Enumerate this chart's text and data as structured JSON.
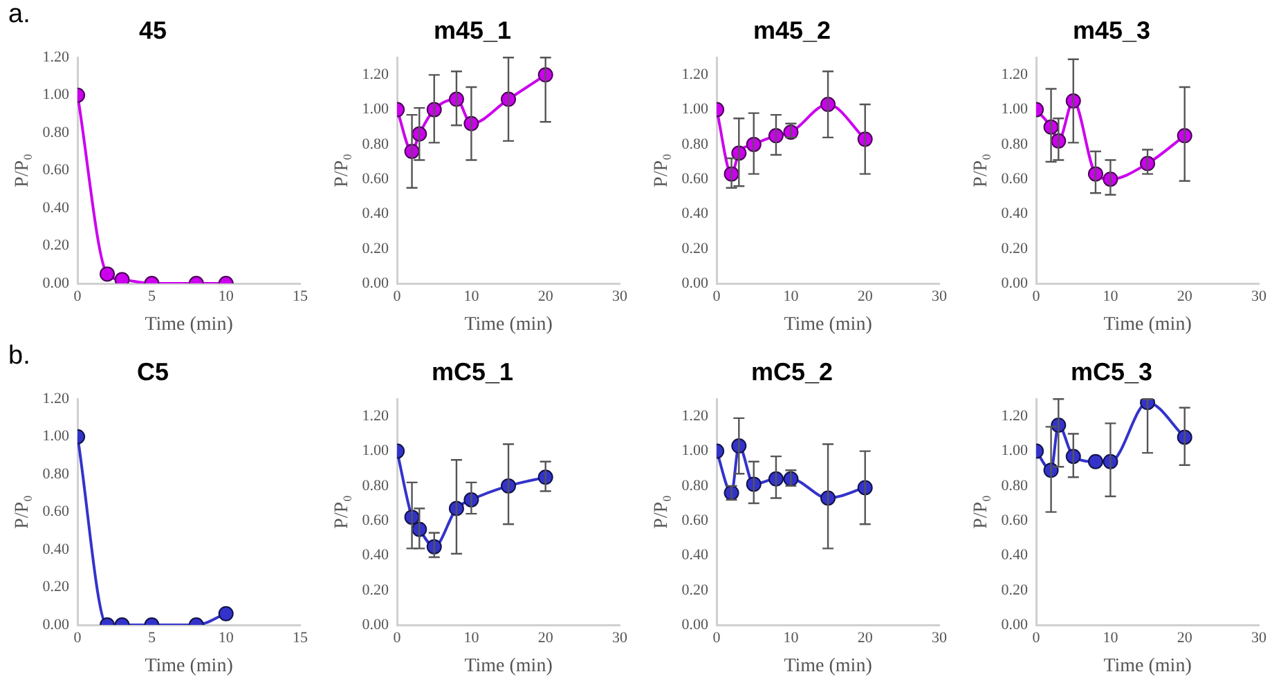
{
  "chart_data": [
    {
      "type": "line",
      "title": "45",
      "xlabel": "Time (min)",
      "ylabel": "P/P₀",
      "annotations": [
        "a."
      ],
      "x": [
        0,
        2,
        3,
        5,
        8,
        10
      ],
      "xlim": [
        0,
        15
      ],
      "xticks": [
        0,
        5,
        10,
        15
      ],
      "ylim": [
        0,
        1.2
      ],
      "yticks": [
        {
          "value": 0,
          "label": "0.00"
        },
        {
          "value": 0.2,
          "label": "0.20"
        },
        {
          "value": 0.4,
          "label": "0.40"
        },
        {
          "value": 0.6,
          "label": "0.60"
        },
        {
          "value": 0.8,
          "label": "0.80"
        },
        {
          "value": 1,
          "label": "1.00"
        },
        {
          "value": 1.2,
          "label": "1.20"
        }
      ],
      "grid": false,
      "marker": "circle",
      "series": [
        {
          "color": "#cc00ee",
          "values": [
            1.0,
            0.05,
            0.02,
            0.0,
            0.0,
            0.0
          ]
        }
      ]
    },
    {
      "type": "line",
      "title": "m45_1",
      "xlabel": "Time (min)",
      "ylabel": "P/P₀",
      "x": [
        0,
        2,
        3,
        5,
        8,
        10,
        15,
        20
      ],
      "xlim": [
        0,
        30
      ],
      "xticks": [
        0,
        10,
        20,
        30
      ],
      "ylim": [
        0,
        1.3
      ],
      "yticks": [
        {
          "value": 0,
          "label": "0.00"
        },
        {
          "value": 0.2,
          "label": "0.20"
        },
        {
          "value": 0.4,
          "label": "0.40"
        },
        {
          "value": 0.6,
          "label": "0.60"
        },
        {
          "value": 0.8,
          "label": "0.80"
        },
        {
          "value": 1,
          "label": "1.00"
        },
        {
          "value": 1.2,
          "label": "1.20"
        }
      ],
      "grid": false,
      "marker": "circle",
      "series": [
        {
          "color": "#cc00ee",
          "values": [
            1.0,
            0.76,
            0.86,
            1.0,
            1.06,
            0.92,
            1.06,
            1.2
          ],
          "errors": [
            null,
            [
              0.55,
              0.97
            ],
            [
              0.71,
              1.01
            ],
            [
              0.81,
              1.2
            ],
            [
              0.91,
              1.22
            ],
            [
              0.71,
              1.13
            ],
            [
              0.82,
              1.3
            ],
            [
              0.93,
              1.3
            ]
          ]
        }
      ]
    },
    {
      "type": "line",
      "title": "m45_2",
      "xlabel": "Time (min)",
      "ylabel": "P/P₀",
      "x": [
        0,
        2,
        3,
        5,
        8,
        10,
        15,
        20
      ],
      "xlim": [
        0,
        30
      ],
      "xticks": [
        0,
        10,
        20,
        30
      ],
      "ylim": [
        0,
        1.3
      ],
      "yticks": [
        {
          "value": 0,
          "label": "0.00"
        },
        {
          "value": 0.2,
          "label": "0.20"
        },
        {
          "value": 0.4,
          "label": "0.40"
        },
        {
          "value": 0.6,
          "label": "0.60"
        },
        {
          "value": 0.8,
          "label": "0.80"
        },
        {
          "value": 1,
          "label": "1.00"
        },
        {
          "value": 1.2,
          "label": "1.20"
        }
      ],
      "grid": false,
      "marker": "circle",
      "series": [
        {
          "color": "#cc00ee",
          "values": [
            1.0,
            0.63,
            0.75,
            0.8,
            0.85,
            0.87,
            1.03,
            0.83
          ],
          "errors": [
            null,
            [
              0.55,
              0.72
            ],
            [
              0.56,
              0.95
            ],
            [
              0.63,
              0.98
            ],
            [
              0.74,
              0.97
            ],
            [
              0.84,
              0.92
            ],
            [
              0.84,
              1.22
            ],
            [
              0.63,
              1.03
            ]
          ]
        }
      ]
    },
    {
      "type": "line",
      "title": "m45_3",
      "xlabel": "Time (min)",
      "ylabel": "P/P₀",
      "x": [
        0,
        2,
        3,
        5,
        8,
        10,
        15,
        20
      ],
      "xlim": [
        0,
        30
      ],
      "xticks": [
        0,
        10,
        20,
        30
      ],
      "ylim": [
        0,
        1.3
      ],
      "yticks": [
        {
          "value": 0,
          "label": "0.00"
        },
        {
          "value": 0.2,
          "label": "0.20"
        },
        {
          "value": 0.4,
          "label": "0.40"
        },
        {
          "value": 0.6,
          "label": "0.60"
        },
        {
          "value": 0.8,
          "label": "0.80"
        },
        {
          "value": 1,
          "label": "1.00"
        },
        {
          "value": 1.2,
          "label": "1.20"
        }
      ],
      "grid": false,
      "marker": "circle",
      "series": [
        {
          "color": "#cc00ee",
          "values": [
            1.0,
            0.9,
            0.82,
            1.05,
            0.63,
            0.6,
            0.69,
            0.85
          ],
          "errors": [
            null,
            [
              0.7,
              1.12
            ],
            [
              0.71,
              0.95
            ],
            [
              0.81,
              1.29
            ],
            [
              0.52,
              0.76
            ],
            [
              0.51,
              0.71
            ],
            [
              0.63,
              0.77
            ],
            [
              0.59,
              1.13
            ]
          ]
        }
      ]
    },
    {
      "type": "line",
      "title": "C5",
      "xlabel": "Time (min)",
      "ylabel": "P/P₀",
      "annotations": [
        "b."
      ],
      "x": [
        0,
        2,
        3,
        5,
        8,
        10
      ],
      "xlim": [
        0,
        15
      ],
      "xticks": [
        0,
        5,
        10,
        15
      ],
      "ylim": [
        0,
        1.2
      ],
      "yticks": [
        {
          "value": 0,
          "label": "0.00"
        },
        {
          "value": 0.2,
          "label": "0.20"
        },
        {
          "value": 0.4,
          "label": "0.40"
        },
        {
          "value": 0.6,
          "label": "0.60"
        },
        {
          "value": 0.8,
          "label": "0.80"
        },
        {
          "value": 1,
          "label": "1.00"
        },
        {
          "value": 1.2,
          "label": "1.20"
        }
      ],
      "grid": false,
      "marker": "circle",
      "series": [
        {
          "color": "#3333cc",
          "values": [
            1.0,
            0.0,
            0.0,
            0.0,
            0.0,
            0.06
          ]
        }
      ]
    },
    {
      "type": "line",
      "title": "mC5_1",
      "xlabel": "Time (min)",
      "ylabel": "P/P₀",
      "x": [
        0,
        2,
        3,
        5,
        8,
        10,
        15,
        20
      ],
      "xlim": [
        0,
        30
      ],
      "xticks": [
        0,
        10,
        20,
        30
      ],
      "ylim": [
        0,
        1.3
      ],
      "yticks": [
        {
          "value": 0,
          "label": "0.00"
        },
        {
          "value": 0.2,
          "label": "0.20"
        },
        {
          "value": 0.4,
          "label": "0.40"
        },
        {
          "value": 0.6,
          "label": "0.60"
        },
        {
          "value": 0.8,
          "label": "0.80"
        },
        {
          "value": 1,
          "label": "1.00"
        },
        {
          "value": 1.2,
          "label": "1.20"
        }
      ],
      "grid": false,
      "marker": "circle",
      "series": [
        {
          "color": "#3333cc",
          "values": [
            1.0,
            0.62,
            0.55,
            0.45,
            0.67,
            0.72,
            0.8,
            0.85
          ],
          "errors": [
            null,
            [
              0.44,
              0.82
            ],
            [
              0.44,
              0.67
            ],
            [
              0.39,
              0.53
            ],
            [
              0.41,
              0.95
            ],
            [
              0.64,
              0.82
            ],
            [
              0.58,
              1.04
            ],
            [
              0.77,
              0.94
            ]
          ]
        }
      ]
    },
    {
      "type": "line",
      "title": "mC5_2",
      "xlabel": "Time (min)",
      "ylabel": "P/P₀",
      "x": [
        0,
        2,
        3,
        5,
        8,
        10,
        15,
        20
      ],
      "xlim": [
        0,
        30
      ],
      "xticks": [
        0,
        10,
        20,
        30
      ],
      "ylim": [
        0,
        1.3
      ],
      "yticks": [
        {
          "value": 0,
          "label": "0.00"
        },
        {
          "value": 0.2,
          "label": "0.20"
        },
        {
          "value": 0.4,
          "label": "0.40"
        },
        {
          "value": 0.6,
          "label": "0.60"
        },
        {
          "value": 0.8,
          "label": "0.80"
        },
        {
          "value": 1,
          "label": "1.00"
        },
        {
          "value": 1.2,
          "label": "1.20"
        }
      ],
      "grid": false,
      "marker": "circle",
      "series": [
        {
          "color": "#3333cc",
          "values": [
            1.0,
            0.76,
            1.03,
            0.81,
            0.84,
            0.84,
            0.73,
            0.79
          ],
          "errors": [
            null,
            [
              0.72,
              0.8
            ],
            [
              0.87,
              1.19
            ],
            [
              0.7,
              0.94
            ],
            [
              0.73,
              0.97
            ],
            [
              0.8,
              0.89
            ],
            [
              0.44,
              1.04
            ],
            [
              0.58,
              1.0
            ]
          ]
        }
      ]
    },
    {
      "type": "line",
      "title": "mC5_3",
      "xlabel": "Time (min)",
      "ylabel": "P/P₀",
      "x": [
        0,
        2,
        3,
        5,
        8,
        10,
        15,
        20
      ],
      "xlim": [
        0,
        30
      ],
      "xticks": [
        0,
        10,
        20,
        30
      ],
      "ylim": [
        0,
        1.3
      ],
      "yticks": [
        {
          "value": 0,
          "label": "0.00"
        },
        {
          "value": 0.2,
          "label": "0.20"
        },
        {
          "value": 0.4,
          "label": "0.40"
        },
        {
          "value": 0.6,
          "label": "0.60"
        },
        {
          "value": 0.8,
          "label": "0.80"
        },
        {
          "value": 1,
          "label": "1.00"
        },
        {
          "value": 1.2,
          "label": "1.20"
        }
      ],
      "grid": false,
      "marker": "circle",
      "series": [
        {
          "color": "#3333cc",
          "values": [
            1.0,
            0.89,
            1.15,
            0.97,
            0.94,
            0.94,
            1.28,
            1.08
          ],
          "errors": [
            null,
            [
              0.65,
              1.14
            ],
            [
              0.91,
              1.3
            ],
            [
              0.85,
              1.1
            ],
            null,
            [
              0.74,
              1.16
            ],
            [
              0.99,
              1.3
            ],
            [
              0.92,
              1.25
            ]
          ]
        }
      ]
    }
  ]
}
